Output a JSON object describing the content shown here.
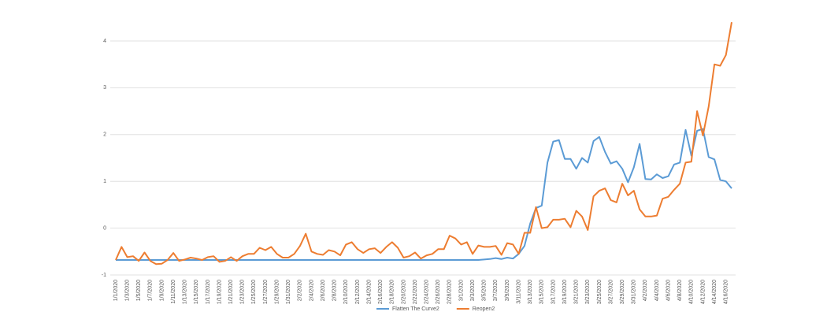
{
  "chart_data": {
    "type": "line",
    "categories": [
      "1/1/2020",
      null,
      "1/3/2020",
      null,
      "1/5/2020",
      null,
      "1/7/2020",
      null,
      "1/9/2020",
      null,
      "1/11/2020",
      null,
      "1/13/2020",
      null,
      "1/15/2020",
      null,
      "1/17/2020",
      null,
      "1/19/2020",
      null,
      "1/21/2020",
      null,
      "1/23/2020",
      null,
      "1/25/2020",
      null,
      "1/27/2020",
      null,
      "1/29/2020",
      null,
      "1/31/2020",
      null,
      "2/2/2020",
      null,
      "2/4/2020",
      null,
      "2/6/2020",
      null,
      "2/8/2020",
      null,
      "2/10/2020",
      null,
      "2/12/2020",
      null,
      "2/14/2020",
      null,
      "2/16/2020",
      null,
      "2/18/2020",
      null,
      "2/20/2020",
      null,
      "2/22/2020",
      null,
      "2/24/2020",
      null,
      "2/26/2020",
      null,
      "2/28/2020",
      null,
      "3/1/2020",
      null,
      "3/3/2020",
      null,
      "3/5/2020",
      null,
      "3/7/2020",
      null,
      "3/9/2020",
      null,
      "3/11/2020",
      null,
      "3/13/2020",
      null,
      "3/15/2020",
      null,
      "3/17/2020",
      null,
      "3/19/2020",
      null,
      "3/21/2020",
      null,
      "3/23/2020",
      null,
      "3/25/2020",
      null,
      "3/27/2020",
      null,
      "3/29/2020",
      null,
      "3/31/2020",
      null,
      "4/2/2020",
      null,
      "4/4/2020",
      null,
      "4/6/2020",
      null,
      "4/8/2020",
      null,
      "4/10/2020",
      null,
      "4/12/2020",
      null,
      "4/14/2020",
      null,
      "4/16/2020",
      null
    ],
    "series": [
      {
        "name": "Flatten The Curve2",
        "color": "#5b9bd5",
        "values": [
          -0.68,
          -0.68,
          -0.68,
          -0.68,
          -0.68,
          -0.68,
          -0.68,
          -0.68,
          -0.68,
          -0.68,
          -0.68,
          -0.68,
          -0.68,
          -0.68,
          -0.68,
          -0.68,
          -0.68,
          -0.68,
          -0.68,
          -0.68,
          -0.68,
          -0.68,
          -0.68,
          -0.68,
          -0.68,
          -0.68,
          -0.68,
          -0.68,
          -0.68,
          -0.68,
          -0.68,
          -0.68,
          -0.68,
          -0.68,
          -0.68,
          -0.68,
          -0.68,
          -0.68,
          -0.68,
          -0.68,
          -0.68,
          -0.68,
          -0.68,
          -0.68,
          -0.68,
          -0.68,
          -0.68,
          -0.68,
          -0.68,
          -0.68,
          -0.68,
          -0.68,
          -0.68,
          -0.68,
          -0.68,
          -0.68,
          -0.68,
          -0.68,
          -0.68,
          -0.68,
          -0.68,
          -0.68,
          -0.68,
          -0.68,
          -0.67,
          -0.66,
          -0.64,
          -0.66,
          -0.63,
          -0.65,
          -0.55,
          -0.38,
          0.1,
          0.43,
          0.48,
          1.4,
          1.85,
          1.88,
          1.48,
          1.48,
          1.27,
          1.5,
          1.4,
          1.86,
          1.95,
          1.63,
          1.38,
          1.43,
          1.27,
          0.98,
          1.3,
          1.8,
          1.05,
          1.04,
          1.15,
          1.07,
          1.11,
          1.36,
          1.4,
          2.1,
          1.55,
          2.08,
          2.12,
          1.52,
          1.47,
          1.03,
          1.0,
          0.85
        ]
      },
      {
        "name": "Reopen2",
        "color": "#ed7d31",
        "values": [
          -0.68,
          -0.4,
          -0.62,
          -0.6,
          -0.7,
          -0.52,
          -0.7,
          -0.77,
          -0.76,
          -0.68,
          -0.53,
          -0.7,
          -0.67,
          -0.63,
          -0.65,
          -0.68,
          -0.62,
          -0.6,
          -0.72,
          -0.7,
          -0.62,
          -0.7,
          -0.6,
          -0.55,
          -0.55,
          -0.42,
          -0.47,
          -0.4,
          -0.55,
          -0.63,
          -0.63,
          -0.55,
          -0.38,
          -0.12,
          -0.5,
          -0.55,
          -0.57,
          -0.47,
          -0.5,
          -0.58,
          -0.35,
          -0.3,
          -0.45,
          -0.53,
          -0.45,
          -0.43,
          -0.53,
          -0.4,
          -0.3,
          -0.42,
          -0.63,
          -0.6,
          -0.52,
          -0.65,
          -0.58,
          -0.55,
          -0.45,
          -0.45,
          -0.16,
          -0.22,
          -0.35,
          -0.3,
          -0.55,
          -0.37,
          -0.4,
          -0.4,
          -0.38,
          -0.57,
          -0.32,
          -0.35,
          -0.55,
          -0.1,
          -0.1,
          0.45,
          0.0,
          0.02,
          0.18,
          0.18,
          0.2,
          0.02,
          0.37,
          0.25,
          -0.04,
          0.68,
          0.8,
          0.85,
          0.6,
          0.55,
          0.95,
          0.7,
          0.8,
          0.4,
          0.25,
          0.25,
          0.27,
          0.63,
          0.67,
          0.82,
          0.95,
          1.4,
          1.42,
          2.5,
          1.98,
          2.6,
          3.5,
          3.47,
          3.7,
          4.4
        ]
      }
    ],
    "ylim": [
      -1,
      4.5
    ],
    "yticks": [
      -1,
      0,
      1,
      2,
      3,
      4
    ],
    "grid": true,
    "legend": "bottom"
  }
}
